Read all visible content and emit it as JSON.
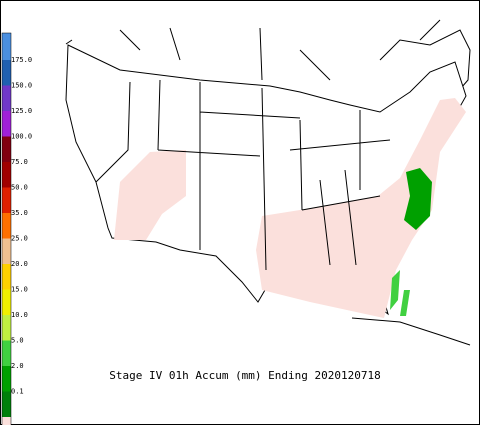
{
  "legend": {
    "labels": [
      "175.0",
      "150.0",
      "125.0",
      "100.0",
      "75.0",
      "50.0",
      "35.0",
      "25.0",
      "20.0",
      "15.0",
      "10.0",
      "5.0",
      "2.0",
      "0.1"
    ],
    "colors": [
      "#4a8fe0",
      "#2060b0",
      "#7038c8",
      "#a020d8",
      "#800010",
      "#a00000",
      "#e02000",
      "#ff7000",
      "#f0c090",
      "#ffd000",
      "#f0f000",
      "#c0f040",
      "#40d040",
      "#00a000",
      "#00800a",
      "#fbe0dc"
    ]
  },
  "map": {
    "title": "Stage IV 01h Accum (mm) Ending 2020120718"
  }
}
